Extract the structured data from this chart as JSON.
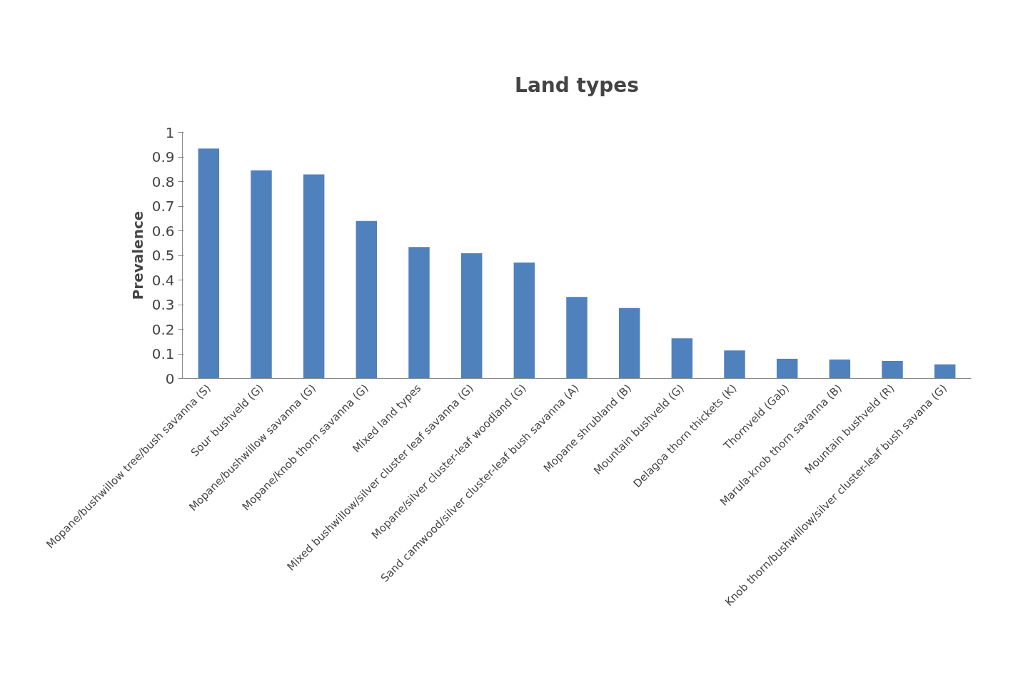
{
  "chart_data": {
    "type": "bar",
    "title": "Land types",
    "ylabel": "Prevalence",
    "categories": [
      "Mopane/bushwillow tree/bush savanna (S)",
      "Sour bushveld (G)",
      "Mopane/bushwillow savanna (G)",
      "Mopane/knob thorn savanna (G)",
      "Mixed land types",
      "Mixed bushwillow/silver cluster leaf savanna (G)",
      "Mopane/silver cluster-leaf woodland (G)",
      "Sand camwood/silver cluster-leaf bush savanna (A)",
      "Mopane shrubland (B)",
      "Mountain bushveld (G)",
      "Delagoa thorn thickets (K)",
      "Thornveld (Gab)",
      "Marula-knob thorn savanna (B)",
      "Mountain bushveld (R)",
      "Knob thorn/bushwillow/silver cluster-leaf bush savana (G)"
    ],
    "values": [
      0.934,
      0.846,
      0.829,
      0.64,
      0.534,
      0.509,
      0.471,
      0.331,
      0.286,
      0.163,
      0.114,
      0.08,
      0.077,
      0.071,
      0.057
    ],
    "color": "#4f81bd",
    "ylim": [
      0,
      1
    ],
    "yticks": [
      0,
      0.1,
      0.2,
      0.3,
      0.4,
      0.5,
      0.6,
      0.7,
      0.8,
      0.9,
      1
    ],
    "grid": false
  }
}
